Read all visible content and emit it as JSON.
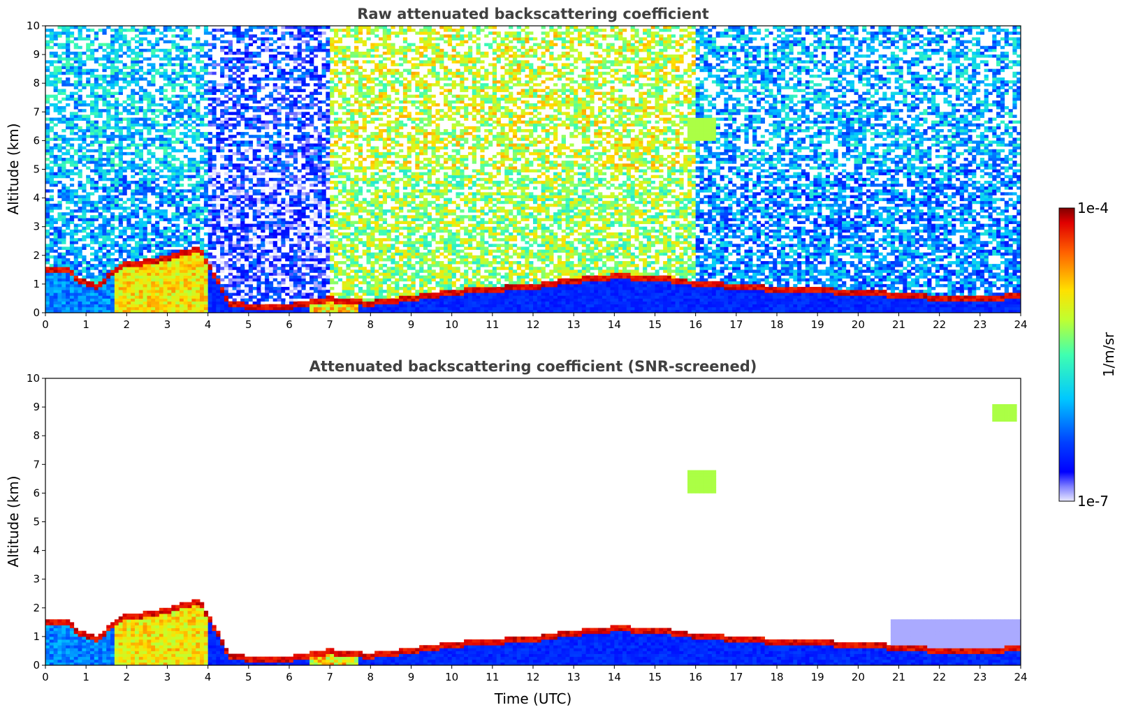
{
  "chart_data": [
    {
      "type": "heatmap",
      "title": "Raw attenuated backscattering coefficient",
      "xlabel": "",
      "ylabel": "Altitude (km)",
      "xlim": [
        0,
        24
      ],
      "ylim": [
        0,
        10
      ],
      "x_ticks": [
        0,
        1,
        2,
        3,
        4,
        5,
        6,
        7,
        8,
        9,
        10,
        11,
        12,
        13,
        14,
        15,
        16,
        17,
        18,
        19,
        20,
        21,
        22,
        23,
        24
      ],
      "y_ticks": [
        0,
        1,
        2,
        3,
        4,
        5,
        6,
        7,
        8,
        9,
        10
      ],
      "boundary_layer_top_km": [
        {
          "t": 0,
          "h": 1.5
        },
        {
          "t": 0.6,
          "h": 1.5
        },
        {
          "t": 0.8,
          "h": 1.1
        },
        {
          "t": 1.3,
          "h": 0.9
        },
        {
          "t": 1.8,
          "h": 1.6
        },
        {
          "t": 2.7,
          "h": 1.8
        },
        {
          "t": 3.8,
          "h": 2.2
        },
        {
          "t": 4.2,
          "h": 1.2
        },
        {
          "t": 4.5,
          "h": 0.3
        },
        {
          "t": 5.0,
          "h": 0.2
        },
        {
          "t": 6.0,
          "h": 0.2
        },
        {
          "t": 6.6,
          "h": 0.35
        },
        {
          "t": 7.0,
          "h": 0.45
        },
        {
          "t": 8.0,
          "h": 0.3
        },
        {
          "t": 9.0,
          "h": 0.5
        },
        {
          "t": 10.0,
          "h": 0.7
        },
        {
          "t": 11.0,
          "h": 0.8
        },
        {
          "t": 12.0,
          "h": 0.9
        },
        {
          "t": 13.0,
          "h": 1.1
        },
        {
          "t": 14.0,
          "h": 1.25
        },
        {
          "t": 15.0,
          "h": 1.2
        },
        {
          "t": 16.0,
          "h": 1.0
        },
        {
          "t": 17.0,
          "h": 0.9
        },
        {
          "t": 18.0,
          "h": 0.8
        },
        {
          "t": 19.0,
          "h": 0.75
        },
        {
          "t": 20.0,
          "h": 0.7
        },
        {
          "t": 21.0,
          "h": 0.6
        },
        {
          "t": 22.0,
          "h": 0.5
        },
        {
          "t": 23.0,
          "h": 0.5
        },
        {
          "t": 24.0,
          "h": 0.55
        }
      ]
    },
    {
      "type": "heatmap",
      "title": "Attenuated backscattering coefficient (SNR-screened)",
      "xlabel": "Time (UTC)",
      "ylabel": "Altitude (km)",
      "xlim": [
        0,
        24
      ],
      "ylim": [
        0,
        10
      ],
      "x_ticks": [
        0,
        1,
        2,
        3,
        4,
        5,
        6,
        7,
        8,
        9,
        10,
        11,
        12,
        13,
        14,
        15,
        16,
        17,
        18,
        19,
        20,
        21,
        22,
        23,
        24
      ],
      "y_ticks": [
        0,
        1,
        2,
        3,
        4,
        5,
        6,
        7,
        8,
        9,
        10
      ],
      "cloud_features": [
        {
          "t0": 15.8,
          "t1": 16.5,
          "h0": 6.0,
          "h1": 6.8,
          "level": "green"
        },
        {
          "t0": 23.3,
          "t1": 23.9,
          "h0": 8.5,
          "h1": 9.1,
          "level": "green"
        }
      ]
    }
  ],
  "colorbar": {
    "label": "1/m/sr",
    "max_label": "1e-4",
    "min_label": "1e-7",
    "scale": "log",
    "range": [
      1e-07,
      0.0001
    ],
    "colormap": "jet"
  }
}
